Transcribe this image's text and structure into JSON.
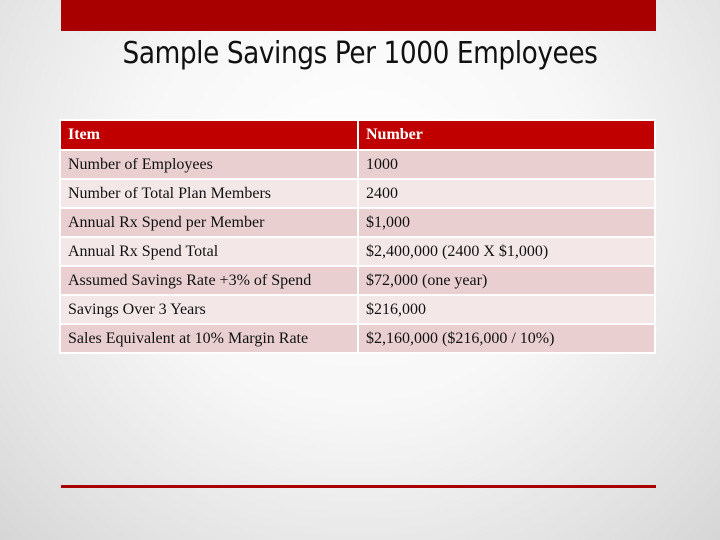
{
  "slide": {
    "title": "Sample Savings Per 1000 Employees",
    "accent_color": "#a80000"
  },
  "table": {
    "headers": [
      "Item",
      "Number"
    ],
    "rows": [
      [
        "Number of Employees",
        "1000"
      ],
      [
        "Number of Total Plan Members",
        "2400"
      ],
      [
        "Annual Rx Spend per Member",
        "$1,000"
      ],
      [
        "Annual Rx Spend Total",
        "$2,400,000 (2400 X $1,000)"
      ],
      [
        "Assumed Savings Rate +3% of Spend",
        "$72,000 (one year)"
      ],
      [
        "Savings Over 3 Years",
        "$216,000"
      ],
      [
        "Sales Equivalent at 10% Margin Rate",
        "$2,160,000 ($216,000 / 10%)"
      ]
    ],
    "header_color": "#c00000",
    "row_colors": [
      "#e9cfd0",
      "#f3e7e8"
    ]
  }
}
